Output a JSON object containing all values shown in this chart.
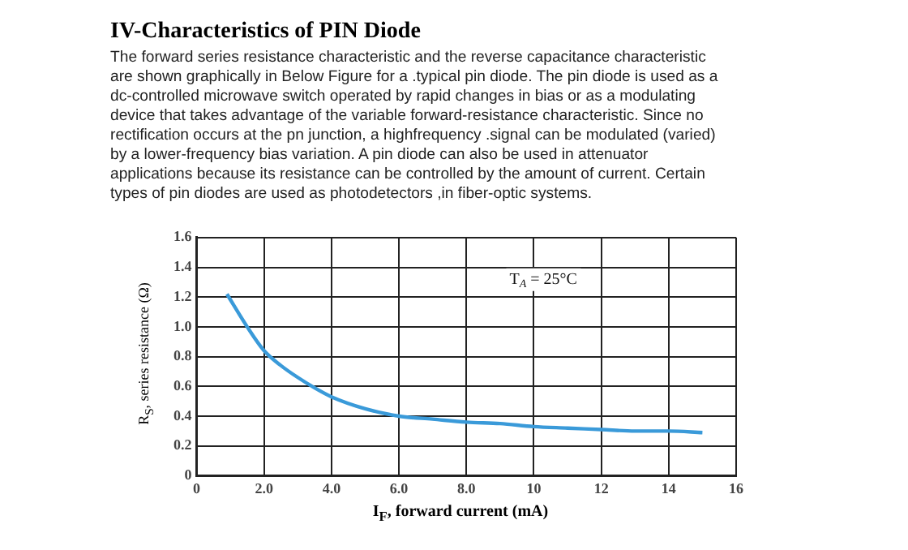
{
  "chart_data": {
    "type": "line",
    "title": "IV-Characteristics of PIN Diode",
    "subtitle": "The forward series resistance characteristic and the reverse capacitance characteristic\nare shown graphically in Below Figure for a .typical pin diode. The pin diode is used as a\ndc-controlled microwave switch operated by rapid changes in bias or as a modulating\ndevice that takes advantage of the variable forward-resistance characteristic. Since no\nrectification occurs at the pn junction, a highfrequency .signal can be modulated (varied)\nby a lower-frequency bias variation. A pin diode can also be used in attenuator\napplications because its resistance can be controlled by the amount of current. Certain\ntypes of pin diodes are used as photodetectors ,in fiber-optic systems.",
    "xlabel": "I$_{F}$, forward current (mA)",
    "ylabel": "R$_{S}$, series resistance (Ω)",
    "annotations": [
      "T$_{A}$ = 25°C"
    ],
    "x": [
      0.9,
      1.5,
      2,
      2.5,
      3,
      3.5,
      4,
      5,
      6,
      7,
      8,
      9,
      10,
      11,
      12,
      13,
      14,
      15
    ],
    "series": [
      {
        "color": "#3a9ad9",
        "values": [
          1.22,
          1.0,
          0.84,
          0.74,
          0.66,
          0.59,
          0.53,
          0.45,
          0.4,
          0.38,
          0.36,
          0.35,
          0.33,
          0.32,
          0.31,
          0.3,
          0.3,
          0.29
        ]
      }
    ],
    "xlim": [
      0,
      16
    ],
    "xticks": [
      0,
      {
        "value": 2,
        "label": "2.0"
      },
      {
        "value": 4,
        "label": "4.0"
      },
      {
        "value": 6,
        "label": "6.0"
      },
      {
        "value": 8,
        "label": "8.0"
      },
      10,
      12,
      14,
      16
    ],
    "ylim": [
      0,
      1.6
    ],
    "yticks": [
      0,
      0.2,
      0.4,
      0.6,
      0.8,
      {
        "value": 1,
        "label": "1.0"
      },
      1.2,
      1.4,
      1.6
    ],
    "grid": true,
    "legend": false,
    "marker": "none",
    "line_style": "solid"
  }
}
